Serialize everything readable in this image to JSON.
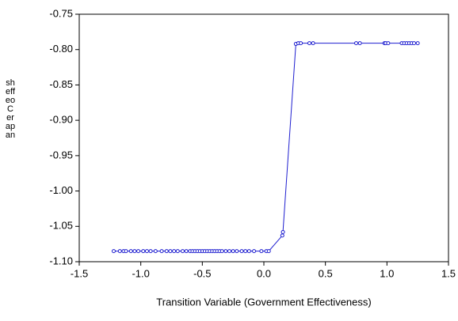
{
  "chart_data": {
    "type": "line",
    "x_label": "Transition Variable (Government Effectiveness)",
    "y_label": "sheffeoCerapan",
    "x": [
      -1.22,
      -1.17,
      -1.14,
      -1.12,
      -1.08,
      -1.05,
      -1.02,
      -0.98,
      -0.95,
      -0.92,
      -0.88,
      -0.83,
      -0.79,
      -0.76,
      -0.73,
      -0.7,
      -0.66,
      -0.63,
      -0.6,
      -0.58,
      -0.56,
      -0.54,
      -0.52,
      -0.5,
      -0.48,
      -0.46,
      -0.44,
      -0.42,
      -0.4,
      -0.38,
      -0.36,
      -0.34,
      -0.31,
      -0.28,
      -0.25,
      -0.22,
      -0.18,
      -0.15,
      -0.12,
      -0.08,
      -0.02,
      0.02,
      0.04,
      0.15,
      0.155,
      0.26,
      0.28,
      0.3,
      0.37,
      0.4,
      0.75,
      0.78,
      0.98,
      0.99,
      1.01,
      1.12,
      1.14,
      1.16,
      1.18,
      1.2,
      1.22,
      1.25
    ],
    "series": [
      {
        "color": "#1f1fd0",
        "values": [
          -1.085,
          -1.085,
          -1.085,
          -1.085,
          -1.085,
          -1.085,
          -1.085,
          -1.085,
          -1.085,
          -1.085,
          -1.085,
          -1.085,
          -1.085,
          -1.085,
          -1.085,
          -1.085,
          -1.085,
          -1.085,
          -1.085,
          -1.085,
          -1.085,
          -1.085,
          -1.085,
          -1.085,
          -1.085,
          -1.085,
          -1.085,
          -1.085,
          -1.085,
          -1.085,
          -1.085,
          -1.085,
          -1.085,
          -1.085,
          -1.085,
          -1.085,
          -1.085,
          -1.085,
          -1.085,
          -1.085,
          -1.085,
          -1.085,
          -1.085,
          -1.063,
          -1.058,
          -0.792,
          -0.791,
          -0.791,
          -0.791,
          -0.791,
          -0.791,
          -0.791,
          -0.791,
          -0.791,
          -0.791,
          -0.791,
          -0.791,
          -0.791,
          -0.791,
          -0.791,
          -0.791,
          -0.791
        ]
      }
    ],
    "xlim": [
      -1.5,
      1.5
    ],
    "xticks": [
      -1.5,
      {
        "value": -1,
        "label": "-1.0"
      },
      -0.5,
      {
        "value": 0,
        "label": "0.0"
      },
      0.5,
      {
        "value": 1,
        "label": "1.0"
      },
      1.5
    ],
    "ylim": [
      -1.1,
      -0.75
    ],
    "yticks": [
      {
        "value": -1.1,
        "label": "-1.10"
      },
      -1.05,
      {
        "value": -1,
        "label": "-1.00"
      },
      -0.95,
      {
        "value": -0.9,
        "label": "-0.90"
      },
      -0.85,
      {
        "value": -0.8,
        "label": "-0.80"
      },
      -0.75
    ],
    "markers": true
  }
}
